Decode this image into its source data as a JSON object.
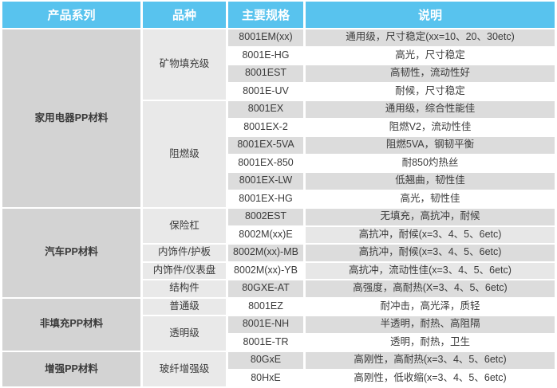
{
  "header": {
    "columns": [
      "产品系列",
      "品种",
      "主要规格",
      "说明"
    ]
  },
  "colors": {
    "header_bg": "#58c3ee",
    "header_text": "#ffffff",
    "series_col_bg": "#d3d3d3",
    "variety_col_bg": "#e9e9e9",
    "row_dark": "#dcdcdc",
    "row_light": "#ffffff",
    "row_mid": "#e7e7e7",
    "body_text": "#3a3a3a"
  },
  "sections": [
    {
      "series": "家用电器PP材料",
      "groups": [
        {
          "variety": "矿物填充级",
          "rows": [
            {
              "spec": "8001EM(xx)",
              "desc": "通用级，尺寸稳定(xx=10、20、30etc)"
            },
            {
              "spec": "8001E-HG",
              "desc": "高光，尺寸稳定"
            },
            {
              "spec": "8001EST",
              "desc": "高韧性，流动性好"
            },
            {
              "spec": "8001E-UV",
              "desc": "耐候，尺寸稳定"
            }
          ]
        },
        {
          "variety": "阻燃级",
          "rows": [
            {
              "spec": "8001EX",
              "desc": "通用级，综合性能佳"
            },
            {
              "spec": "8001EX-2",
              "desc": "阻燃V2，流动性佳"
            },
            {
              "spec": "8001EX-5VA",
              "desc": "阻燃5VA，钢韧平衡"
            },
            {
              "spec": "8001EX-850",
              "desc": "耐850灼热丝"
            },
            {
              "spec": "8001EX-LW",
              "desc": "低翘曲，韧性佳"
            },
            {
              "spec": "8001EX-HG",
              "desc": "高光，韧性佳"
            }
          ]
        }
      ]
    },
    {
      "series": "汽车PP材料",
      "groups": [
        {
          "variety": "保险杠",
          "rows": [
            {
              "spec": "8002EST",
              "desc": "无填充，高抗冲，耐候"
            },
            {
              "spec": "8002M(xx)E",
              "desc": "高抗冲，耐候(x=3、4、5、6etc)"
            }
          ]
        },
        {
          "variety": "内饰件/护板",
          "rows": [
            {
              "spec": "8002M(xx)-MB",
              "desc": "高抗冲，耐候(x=3、4、5、6etc)"
            }
          ]
        },
        {
          "variety": "内饰件/仪表盘",
          "rows": [
            {
              "spec": "8002M(xx)-YB",
              "desc": "高抗冲，流动性佳(x=3、4、5、6etc)"
            }
          ]
        },
        {
          "variety": "结构件",
          "rows": [
            {
              "spec": "80GXE-AT",
              "desc": "高强度，高耐热(X=3、4、5、6etc)"
            }
          ]
        }
      ]
    },
    {
      "series": "非填充PP材料",
      "groups": [
        {
          "variety": "普通级",
          "rows": [
            {
              "spec": "8001EZ",
              "desc": "耐冲击，高光泽，质轻"
            }
          ]
        },
        {
          "variety": "透明级",
          "rows": [
            {
              "spec": "8001E-NH",
              "desc": "半透明，耐热、高阻隔"
            },
            {
              "spec": "8001E-TR",
              "desc": "透明，耐热，卫生"
            }
          ]
        }
      ]
    },
    {
      "series": "增强PP材料",
      "groups": [
        {
          "variety": "玻纤增强级",
          "rows": [
            {
              "spec": "80GxE",
              "desc": "高刚性，高耐热(x=3、4、5、6etc)"
            },
            {
              "spec": "80HxE",
              "desc": "高刚性，低收缩(x=3、4、5、6etc)"
            }
          ]
        }
      ]
    }
  ]
}
